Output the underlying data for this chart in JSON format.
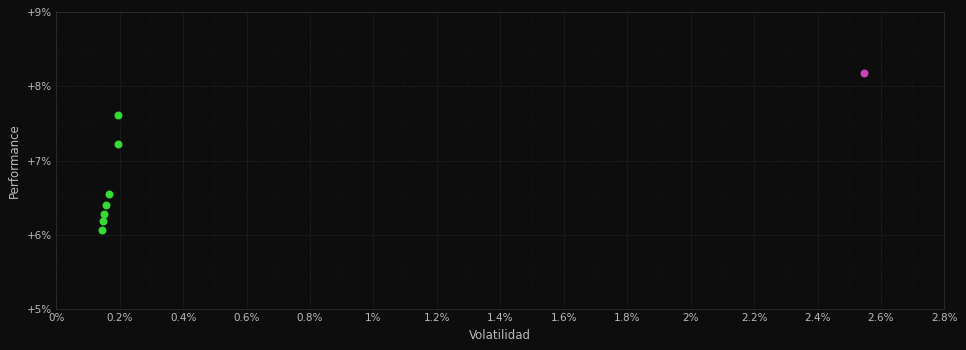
{
  "background_color": "#0d0d0d",
  "grid_color": "#3a3a3a",
  "text_color": "#bbbbbb",
  "xlabel": "Volatilidad",
  "ylabel": "Performance",
  "xlim": [
    0.0,
    0.028
  ],
  "ylim": [
    0.05,
    0.09
  ],
  "xtick_values": [
    0.0,
    0.002,
    0.004,
    0.006,
    0.008,
    0.01,
    0.012,
    0.014,
    0.016,
    0.018,
    0.02,
    0.022,
    0.024,
    0.026,
    0.028
  ],
  "xtick_labels": [
    "0%",
    "0.2%",
    "0.4%",
    "0.6%",
    "0.8%",
    "1%",
    "1.2%",
    "1.4%",
    "1.6%",
    "1.8%",
    "2%",
    "2.2%",
    "2.4%",
    "2.6%",
    "2.8%"
  ],
  "ytick_values": [
    0.05,
    0.06,
    0.07,
    0.08,
    0.09
  ],
  "ytick_labels": [
    "+5%",
    "+6%",
    "+7%",
    "+8%",
    "+9%"
  ],
  "green_points": [
    [
      0.00195,
      0.0762
    ],
    [
      0.00195,
      0.0722
    ],
    [
      0.00165,
      0.0655
    ],
    [
      0.00158,
      0.064
    ],
    [
      0.00152,
      0.0628
    ],
    [
      0.00148,
      0.0618
    ],
    [
      0.00145,
      0.0607
    ]
  ],
  "magenta_point": [
    0.02545,
    0.0818
  ],
  "green_color": "#33dd33",
  "magenta_color": "#cc44bb",
  "dot_size": 22,
  "grid_linewidth": 0.5,
  "grid_linestyle": ":"
}
